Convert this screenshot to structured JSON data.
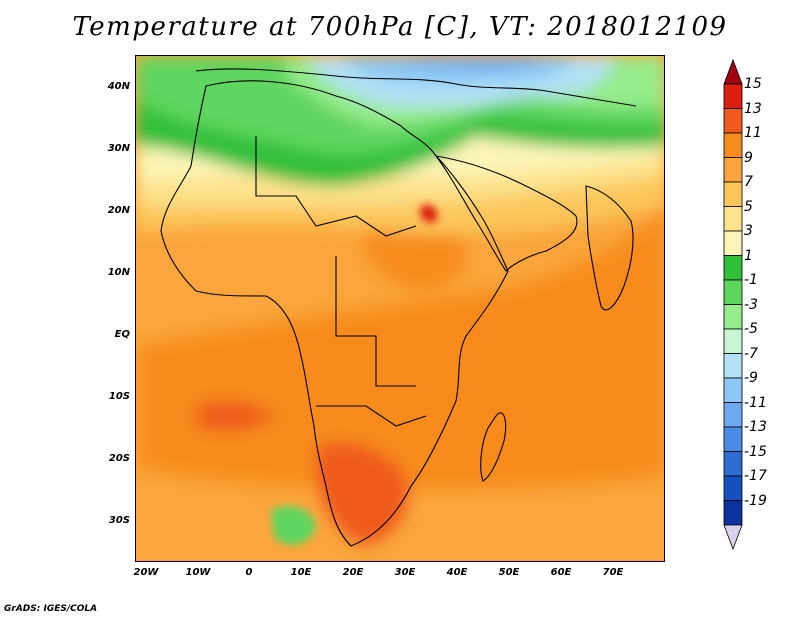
{
  "title": "Temperature at 700hPa [C], VT: 2018012109",
  "credit": "GrADS: IGES/COLA",
  "lat_labels": [
    "40N",
    "30N",
    "20N",
    "10N",
    "EQ",
    "10S",
    "20S",
    "30S"
  ],
  "lon_labels": [
    "20W",
    "10W",
    "0",
    "10E",
    "20E",
    "30E",
    "40E",
    "50E",
    "60E",
    "70E"
  ],
  "colorbar": {
    "labels": [
      "15",
      "13",
      "11",
      "9",
      "7",
      "5",
      "3",
      "1",
      "-1",
      "-3",
      "-5",
      "-7",
      "-9",
      "-11",
      "-13",
      "-15",
      "-17",
      "-19"
    ],
    "colors": [
      "#a0000f",
      "#dc1e0f",
      "#f05a1e",
      "#f78c1e",
      "#faa63c",
      "#fcc65a",
      "#fde28c",
      "#fdf5b8",
      "#2fbf3a",
      "#5ed65e",
      "#96eb8c",
      "#c8f5d2",
      "#b4e1f5",
      "#8cc8f5",
      "#6eaaf0",
      "#4b8ce6",
      "#2d6ed2",
      "#1450be",
      "#0a32a0",
      "#0a0a64"
    ]
  }
}
